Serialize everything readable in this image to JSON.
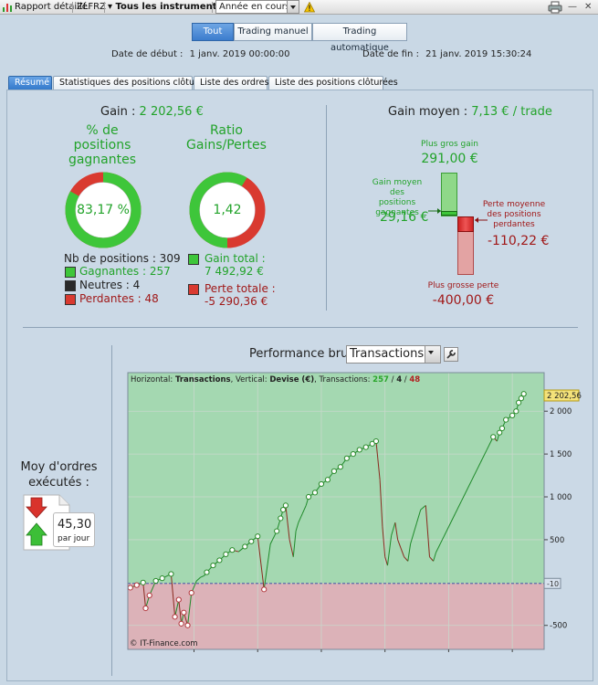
{
  "toolbar": {
    "report_label": "Rapport détaillé",
    "ticker": "ZLFRZ",
    "instruments_label": "Tous les instruments",
    "period_value": "Année en cours"
  },
  "modes": [
    "Tout",
    "Trading manuel",
    "Trading automatique"
  ],
  "dates": {
    "start_label": "Date de début :",
    "start_value": "1 janv. 2019 00:00:00",
    "end_label": "Date de fin :",
    "end_value": "21 janv. 2019 15:30:24"
  },
  "tabs": [
    "Résumé",
    "Statistiques des positions clôturées",
    "Liste des ordres",
    "Liste des positions clôturées"
  ],
  "summary": {
    "gain_label": "Gain :",
    "gain_value": "2 202,56 €",
    "pct_title_1": "% de",
    "pct_title_2": "positions",
    "pct_title_3": "gagnantes",
    "pct_value": "83,17 %",
    "pct_fraction": 0.8317,
    "ratio_title_1": "Ratio",
    "ratio_title_2": "Gains/Pertes",
    "ratio_value": "1,42",
    "ratio_fraction": 0.586,
    "nb_positions": "Nb de positions : 309",
    "gagnantes": "Gagnantes : 257",
    "neutres": "Neutres : 4",
    "perdantes": "Perdantes : 48",
    "gain_total_label": "Gain total :",
    "gain_total_value": "7 492,92 €",
    "perte_totale_label": "Perte totale :",
    "perte_totale_value": "-5 290,36 €",
    "colors": {
      "green": "#3ec63a",
      "red": "#d93a30",
      "dark": "#2a2a2a"
    }
  },
  "gain_moyen": {
    "label": "Gain moyen :",
    "value": "7,13 € / trade",
    "plus_gros_gain_label": "Plus gros gain",
    "plus_gros_gain_value": "291,00 €",
    "gain_moyen_pos_label_1": "Gain moyen des",
    "gain_moyen_pos_label_2": "positions",
    "gain_moyen_pos_label_3": "gagnantes",
    "gain_moyen_pos_value": "29,16 €",
    "perte_moyenne_label_1": "Perte moyenne",
    "perte_moyenne_label_2": "des positions",
    "perte_moyenne_label_3": "perdantes",
    "perte_moyenne_value": "-110,22 €",
    "plus_grosse_perte_label": "Plus grosse perte",
    "plus_grosse_perte_value": "-400,00 €"
  },
  "orders": {
    "title_1": "Moy d'ordres",
    "title_2": "exécutés :",
    "value": "45,30",
    "unit": "par jour"
  },
  "performance": {
    "title": "Performance brute",
    "select_value": "Transactions",
    "info_prefix": "Horizontal: ",
    "info_h": "Transactions",
    "info_mid": ", Vertical: ",
    "info_v": "Devise (€)",
    "info_tr": ", Transactions: ",
    "info_win": "257",
    "info_slash1": " / ",
    "info_neu": "4",
    "info_slash2": " / ",
    "info_los": "48",
    "copyright": "© IT-Finance.com",
    "last_value_tag": "2 202,56",
    "zero_tag": "-10"
  },
  "chart_data": {
    "type": "line",
    "xlabel": "",
    "ylabel": "",
    "xlim": [
      -2,
      325
    ],
    "ylim": [
      -780,
      2450
    ],
    "x_ticks": [
      50,
      100,
      150,
      200,
      250,
      300
    ],
    "y_ticks": [
      -500,
      500,
      1000,
      1500,
      2000
    ],
    "y_tick_labels": [
      "-500",
      "500",
      "1 000",
      "1 500",
      "2 000"
    ],
    "baseline": -10,
    "series": [
      {
        "x": [
          0,
          5,
          10,
          12,
          15,
          20,
          25,
          32,
          35,
          38,
          40,
          42,
          45,
          48,
          52,
          55,
          58,
          60,
          65,
          70,
          75,
          80,
          85,
          90,
          95,
          100,
          105,
          110,
          115,
          118,
          120,
          122,
          125,
          128,
          130,
          132,
          135,
          138,
          140,
          145,
          150,
          155,
          160,
          165,
          170,
          175,
          180,
          185,
          190,
          193,
          196,
          198,
          200,
          202,
          205,
          208,
          210,
          215,
          218,
          220,
          225,
          228,
          232,
          235,
          238,
          240,
          245,
          250,
          255,
          260,
          265,
          270,
          275,
          280,
          285,
          288,
          290,
          292,
          295,
          300,
          303,
          305,
          307,
          309
        ],
        "y": [
          -60,
          -30,
          0,
          -300,
          -150,
          20,
          50,
          100,
          -400,
          -200,
          -480,
          -350,
          -500,
          -120,
          20,
          60,
          80,
          120,
          200,
          260,
          330,
          380,
          360,
          420,
          480,
          540,
          -80,
          450,
          600,
          750,
          850,
          900,
          500,
          300,
          600,
          700,
          800,
          900,
          1000,
          1050,
          1150,
          1200,
          1300,
          1350,
          1450,
          1500,
          1550,
          1580,
          1620,
          1650,
          1200,
          650,
          300,
          200,
          550,
          700,
          500,
          300,
          250,
          450,
          700,
          850,
          900,
          300,
          250,
          350,
          500,
          650,
          800,
          950,
          1100,
          1250,
          1400,
          1550,
          1700,
          1650,
          1750,
          1800,
          1900,
          1950,
          2000,
          2100,
          2150,
          2202
        ]
      }
    ]
  }
}
